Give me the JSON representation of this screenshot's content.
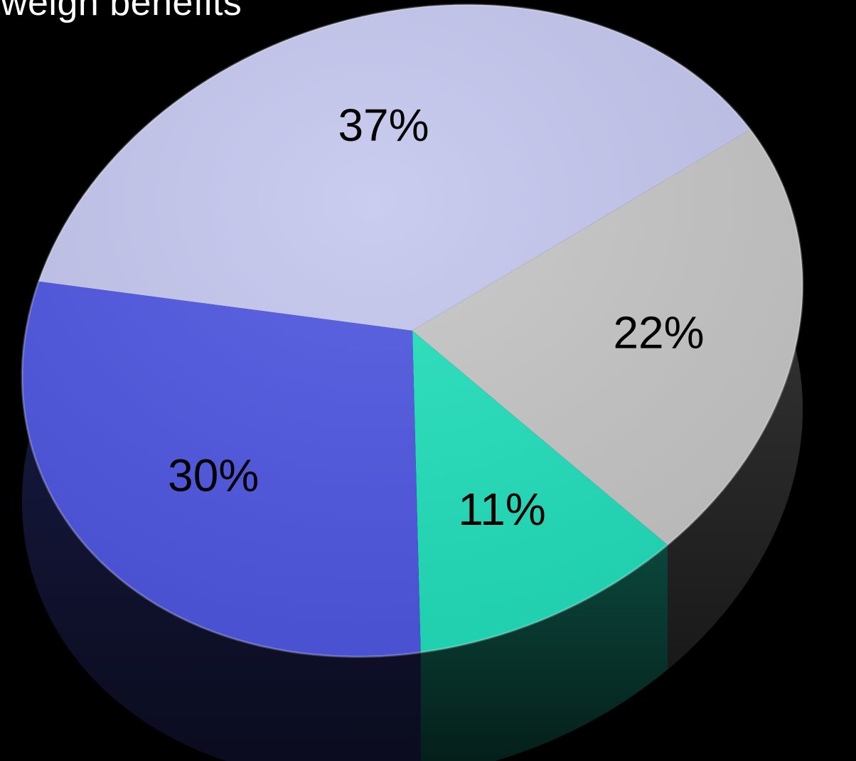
{
  "header": {
    "title_fragment": "tweigh benefits"
  },
  "chart_data": {
    "type": "pie",
    "style": "3d",
    "slices": [
      {
        "label": "37%",
        "value": 37,
        "color": "#c4c6ee"
      },
      {
        "label": "22%",
        "value": 22,
        "color": "#c6c6c6"
      },
      {
        "label": "11%",
        "value": 11,
        "color": "#22e0bc"
      },
      {
        "label": "30%",
        "value": 30,
        "color": "#4f57e2"
      }
    ]
  }
}
